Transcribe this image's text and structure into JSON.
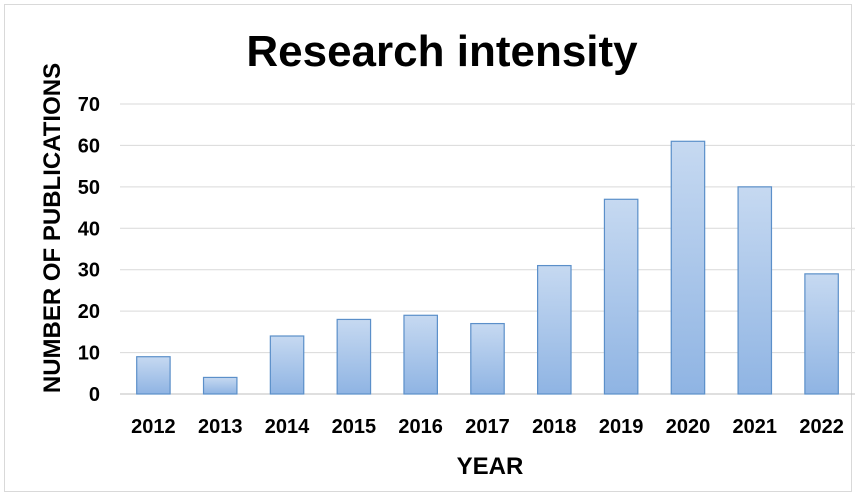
{
  "chart_data": {
    "type": "bar",
    "title": "Research intensity",
    "xlabel": "YEAR",
    "ylabel": "NUMBER OF PUBLICATIONS",
    "categories": [
      "2012",
      "2013",
      "2014",
      "2015",
      "2016",
      "2017",
      "2018",
      "2019",
      "2020",
      "2021",
      "2022"
    ],
    "values": [
      9,
      4,
      14,
      18,
      19,
      17,
      31,
      47,
      61,
      50,
      29
    ],
    "yticks": [
      "0",
      "10",
      "20",
      "30",
      "40",
      "50",
      "60",
      "70"
    ],
    "ylim": [
      0,
      70
    ],
    "grid": true,
    "legend": "none",
    "colors": {
      "bar_top": "#c6d9f1",
      "bar_bottom": "#8fb4e3",
      "bar_border": "#5b8fc9",
      "grid": "#d9d9d9"
    }
  }
}
